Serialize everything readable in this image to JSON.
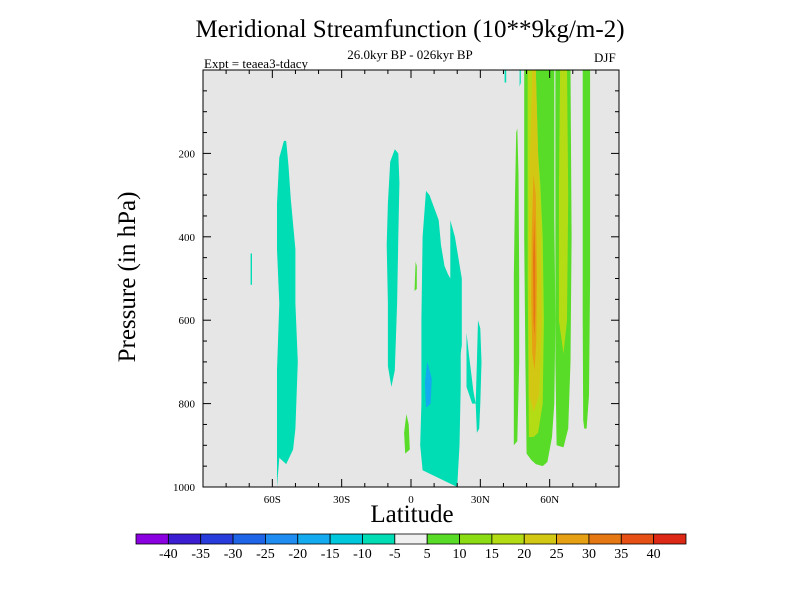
{
  "chart_data": {
    "type": "contour",
    "title": "Meridional Streamfunction (10**9kg/m-2)",
    "subtitle": "26.0kyr BP - 026kyr BP",
    "experiment": "Expt = teaea3-tdacy",
    "season": "DJF",
    "xlabel": "Latitude",
    "ylabel": "Pressure (in hPa)",
    "xlim": [
      -90,
      90
    ],
    "ylim": [
      1000,
      0
    ],
    "x_ticks": [
      {
        "value": -60,
        "label": "60S"
      },
      {
        "value": -30,
        "label": "30S"
      },
      {
        "value": 0,
        "label": "0"
      },
      {
        "value": 30,
        "label": "30N"
      },
      {
        "value": 60,
        "label": "60N"
      }
    ],
    "y_ticks": [
      {
        "value": 200,
        "label": "200"
      },
      {
        "value": 400,
        "label": "400"
      },
      {
        "value": 600,
        "label": "600"
      },
      {
        "value": 800,
        "label": "800"
      },
      {
        "value": 1000,
        "label": "1000"
      }
    ],
    "background_color": "#e6e6e6",
    "colorbar": {
      "levels": [
        -40,
        -35,
        -30,
        -25,
        -20,
        -15,
        -10,
        -5,
        5,
        10,
        15,
        20,
        25,
        30,
        35,
        40
      ],
      "colors": [
        "#8a00e0",
        "#3c1ed2",
        "#283cdc",
        "#1e64e6",
        "#1e8cf0",
        "#14aaf0",
        "#00c8dc",
        "#00dcb4",
        "#f0f0f0",
        "#58dc28",
        "#8cdc14",
        "#b4dc14",
        "#d2c814",
        "#e6a014",
        "#e67814",
        "#e65014",
        "#dc2814"
      ]
    },
    "regions": [
      {
        "name": "sh-midlat-cell",
        "color": "#00dcb4",
        "points": [
          [
            -58,
            1000
          ],
          [
            -58,
            840
          ],
          [
            -58,
            720
          ],
          [
            -57,
            560
          ],
          [
            -58,
            430
          ],
          [
            -58,
            320
          ],
          [
            -57,
            210
          ],
          [
            -55,
            170
          ],
          [
            -54,
            170
          ],
          [
            -53,
            230
          ],
          [
            -52,
            310
          ],
          [
            -50,
            430
          ],
          [
            -50,
            560
          ],
          [
            -49,
            700
          ],
          [
            -50,
            860
          ],
          [
            -51,
            910
          ],
          [
            -54,
            945
          ],
          [
            -57,
            930
          ]
        ]
      },
      {
        "name": "sh-small-streak",
        "color": "#00dcb4",
        "points": [
          [
            -69.4,
            440
          ],
          [
            -68.8,
            440
          ],
          [
            -68.8,
            515
          ],
          [
            -69.4,
            515
          ]
        ]
      },
      {
        "name": "sh-trop-cell",
        "color": "#00dcb4",
        "points": [
          [
            -10,
            710
          ],
          [
            -10,
            560
          ],
          [
            -10.5,
            420
          ],
          [
            -10,
            320
          ],
          [
            -9,
            220
          ],
          [
            -7,
            190
          ],
          [
            -5.5,
            200
          ],
          [
            -5,
            270
          ],
          [
            -5.5,
            400
          ],
          [
            -6,
            560
          ],
          [
            -7,
            720
          ],
          [
            -8.5,
            760
          ]
        ]
      },
      {
        "name": "eq-cell",
        "color": "#00dcb4",
        "points": [
          [
            5,
            960
          ],
          [
            4,
            900
          ],
          [
            4.5,
            800
          ],
          [
            4.5,
            600
          ],
          [
            5,
            400
          ],
          [
            6.5,
            290
          ],
          [
            8,
            300
          ],
          [
            10,
            330
          ],
          [
            12,
            360
          ],
          [
            13,
            420
          ],
          [
            14.5,
            470
          ],
          [
            16,
            490
          ],
          [
            19,
            520
          ],
          [
            21,
            550
          ],
          [
            21.5,
            630
          ],
          [
            21.5,
            760
          ],
          [
            21,
            900
          ],
          [
            20,
            1000
          ]
        ]
      },
      {
        "name": "eq-core",
        "color": "#14aaf0",
        "points": [
          [
            7,
            700
          ],
          [
            6,
            750
          ],
          [
            6.5,
            810
          ],
          [
            8.5,
            800
          ],
          [
            9,
            740
          ]
        ]
      },
      {
        "name": "eq-fringe-ne",
        "color": "#00dcb4",
        "points": [
          [
            17,
            360
          ],
          [
            19,
            400
          ],
          [
            22,
            500
          ],
          [
            22,
            660
          ],
          [
            21,
            700
          ],
          [
            17,
            690
          ]
        ]
      },
      {
        "name": "eq-fringe-e",
        "color": "#00dcb4",
        "points": [
          [
            24,
            630
          ],
          [
            25,
            680
          ],
          [
            27,
            770
          ],
          [
            28,
            800
          ],
          [
            26.5,
            800
          ],
          [
            24,
            760
          ]
        ]
      },
      {
        "name": "nh-sub-cell",
        "color": "#00dcb4",
        "points": [
          [
            28.5,
            870
          ],
          [
            28,
            800
          ],
          [
            28.5,
            700
          ],
          [
            29,
            600
          ],
          [
            30,
            620
          ],
          [
            30.5,
            700
          ],
          [
            30,
            800
          ],
          [
            29.5,
            860
          ]
        ]
      },
      {
        "name": "green-small-sliver",
        "color": "#58dc28",
        "points": [
          [
            1.5,
            530
          ],
          [
            2,
            460
          ],
          [
            2.5,
            470
          ],
          [
            2.5,
            525
          ]
        ]
      },
      {
        "name": "green-bottom-streak",
        "color": "#58dc28",
        "points": [
          [
            -2.5,
            920
          ],
          [
            -3,
            870
          ],
          [
            -2,
            825
          ],
          [
            -1,
            850
          ],
          [
            -0.5,
            910
          ]
        ]
      },
      {
        "name": "nh-green-west",
        "color": "#58dc28",
        "points": [
          [
            44.5,
            900
          ],
          [
            44.5,
            700
          ],
          [
            44.5,
            500
          ],
          [
            45,
            300
          ],
          [
            45.5,
            150
          ],
          [
            46,
            140
          ],
          [
            46.5,
            250
          ],
          [
            46.8,
            500
          ],
          [
            46.8,
            700
          ],
          [
            46,
            890
          ]
        ]
      },
      {
        "name": "nh-green-main",
        "color": "#58dc28",
        "points": [
          [
            50,
            920
          ],
          [
            49.5,
            700
          ],
          [
            49,
            400
          ],
          [
            49,
            0
          ],
          [
            62,
            0
          ],
          [
            62,
            350
          ],
          [
            62.5,
            600
          ],
          [
            62,
            800
          ],
          [
            61,
            880
          ],
          [
            59,
            940
          ],
          [
            57,
            950
          ],
          [
            54,
            945
          ],
          [
            52,
            935
          ]
        ]
      },
      {
        "name": "nh-yellow-main",
        "color": "#b4dc14",
        "points": [
          [
            51,
            880
          ],
          [
            50.5,
            500
          ],
          [
            50.5,
            0
          ],
          [
            54,
            0
          ],
          [
            55,
            200
          ],
          [
            56,
            280
          ],
          [
            57,
            400
          ],
          [
            57.5,
            600
          ],
          [
            57,
            800
          ],
          [
            55,
            870
          ],
          [
            53,
            880
          ]
        ]
      },
      {
        "name": "nh-gold-core",
        "color": "#d2c814",
        "points": [
          [
            51.2,
            780
          ],
          [
            51,
            600
          ],
          [
            51,
            400
          ],
          [
            51.5,
            200
          ],
          [
            52.5,
            0
          ],
          [
            54,
            0
          ],
          [
            55,
            200
          ],
          [
            56,
            350
          ],
          [
            56.5,
            600
          ],
          [
            55.5,
            780
          ],
          [
            53,
            820
          ]
        ]
      },
      {
        "name": "nh-orange-core",
        "color": "#e6a014",
        "points": [
          [
            52.5,
            680
          ],
          [
            52,
            550
          ],
          [
            52.2,
            400
          ],
          [
            53,
            250
          ],
          [
            54,
            300
          ],
          [
            54.5,
            500
          ],
          [
            54.2,
            650
          ],
          [
            53.5,
            720
          ]
        ]
      },
      {
        "name": "nh-red-core",
        "color": "#e67814",
        "points": [
          [
            53,
            600
          ],
          [
            52.8,
            450
          ],
          [
            53.3,
            350
          ],
          [
            53.8,
            450
          ],
          [
            53.8,
            580
          ],
          [
            53.4,
            640
          ]
        ]
      },
      {
        "name": "nh-green-east",
        "color": "#58dc28",
        "points": [
          [
            63,
            900
          ],
          [
            62.5,
            700
          ],
          [
            62.5,
            0
          ],
          [
            69,
            0
          ],
          [
            69.5,
            400
          ],
          [
            69,
            700
          ],
          [
            68,
            860
          ],
          [
            66,
            905
          ]
        ]
      },
      {
        "name": "nh-yellow-east",
        "color": "#b4dc14",
        "points": [
          [
            64,
            600
          ],
          [
            64,
            300
          ],
          [
            64.5,
            0
          ],
          [
            67.5,
            0
          ],
          [
            68,
            300
          ],
          [
            67.5,
            600
          ],
          [
            66,
            680
          ]
        ]
      },
      {
        "name": "nh-green-far-east",
        "color": "#58dc28",
        "points": [
          [
            74.5,
            840
          ],
          [
            74.3,
            600
          ],
          [
            74.3,
            0
          ],
          [
            77.5,
            0
          ],
          [
            77.5,
            500
          ],
          [
            77,
            780
          ],
          [
            76,
            860
          ],
          [
            75,
            860
          ]
        ]
      },
      {
        "name": "nh-top-cyan-streak",
        "color": "#00dcb4",
        "points": [
          [
            40.5,
            30
          ],
          [
            40.5,
            0
          ],
          [
            41.2,
            0
          ],
          [
            41.2,
            30
          ]
        ]
      },
      {
        "name": "nh-top-cyan-streak-2",
        "color": "#00dcb4",
        "points": [
          [
            47,
            0
          ],
          [
            47.5,
            0
          ],
          [
            47.5,
            30
          ],
          [
            47,
            40
          ]
        ]
      }
    ]
  }
}
